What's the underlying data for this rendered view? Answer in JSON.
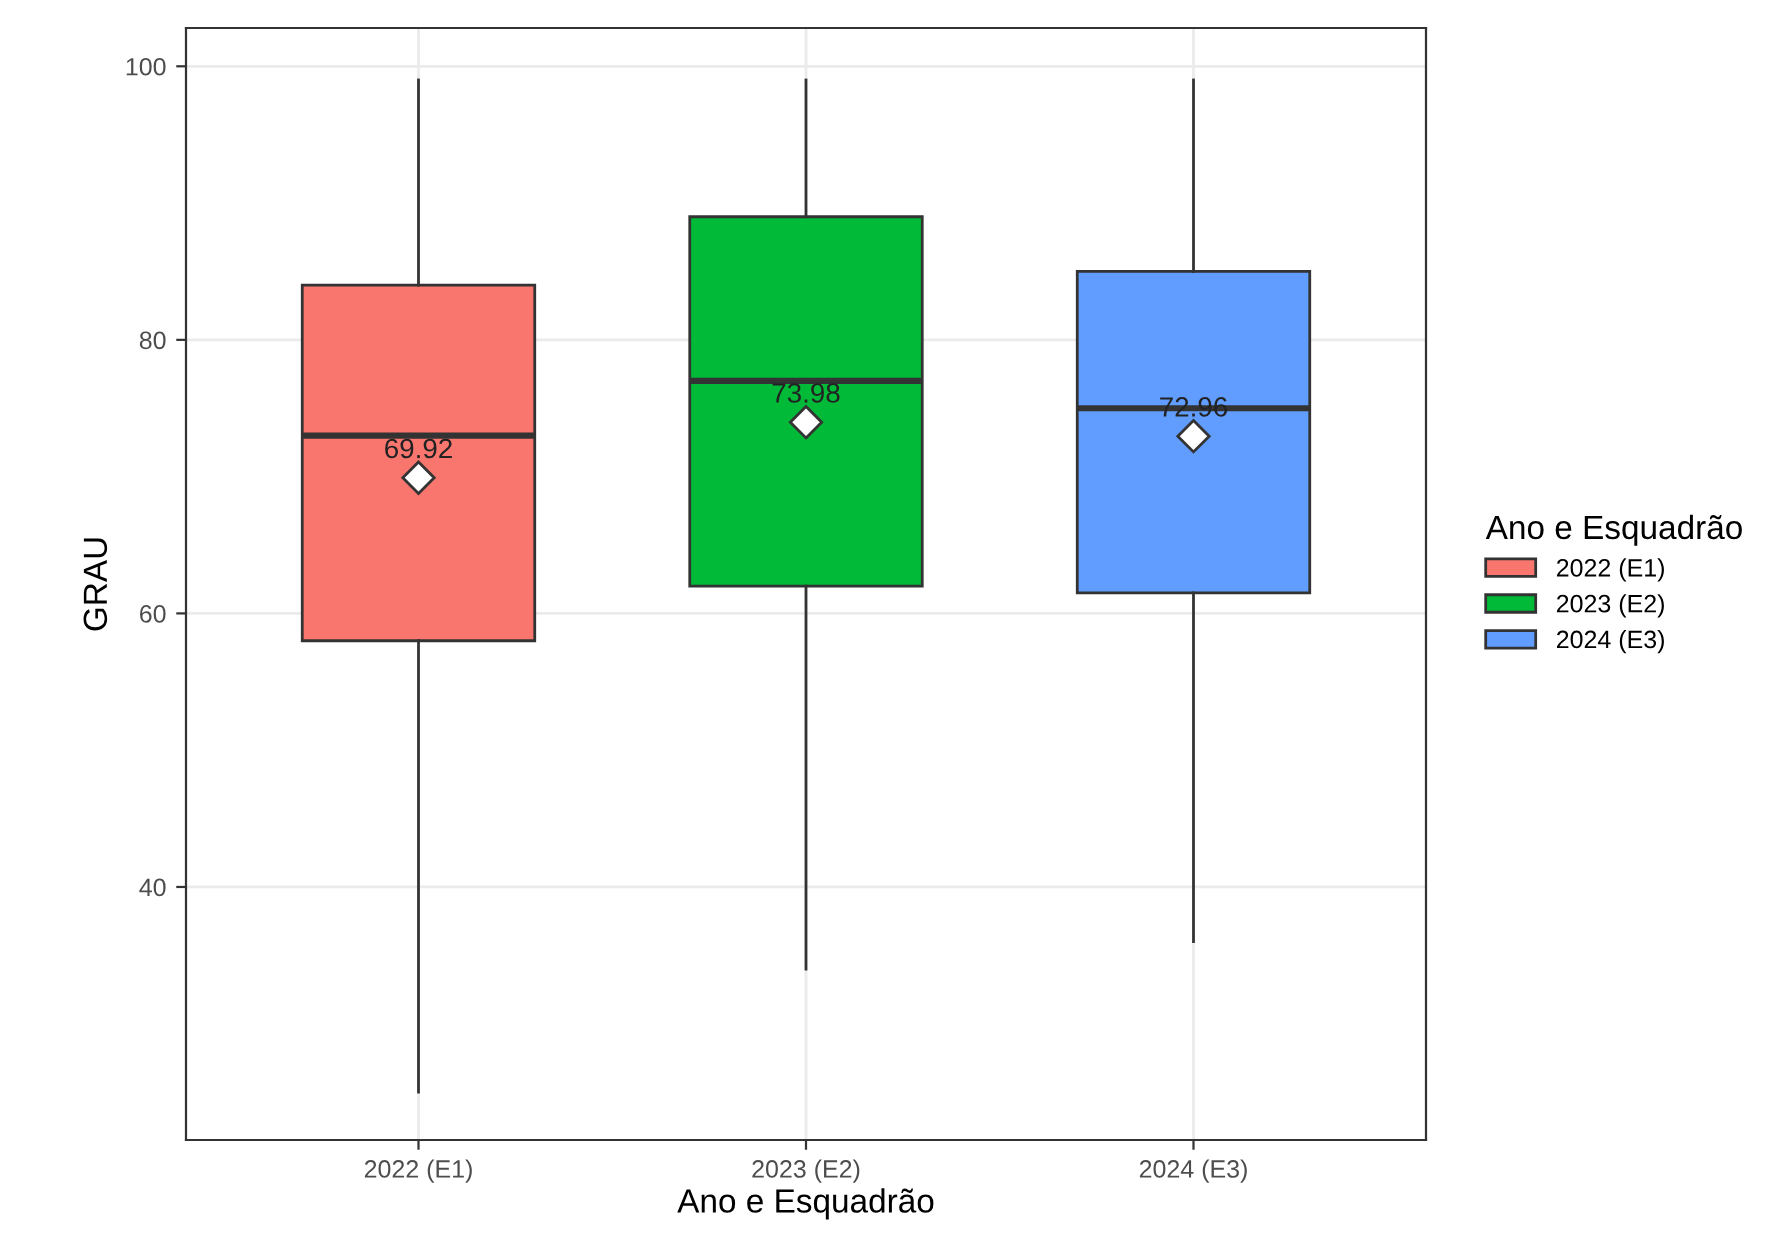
{
  "chart_data": {
    "type": "box",
    "xlabel": "Ano e Esquadrão",
    "ylabel": "GRAU",
    "legend_title": "Ano e Esquadrão",
    "categories": [
      "2022 (E1)",
      "2023 (E2)",
      "2024 (E3)"
    ],
    "series": [
      {
        "name": "2022 (E1)",
        "color": "#f8766d",
        "boxes": [
          {
            "low": 25,
            "q1": 58,
            "median": 73,
            "q3": 84,
            "high": 99,
            "mean": 69.92
          },
          null,
          null
        ]
      },
      {
        "name": "2023 (E2)",
        "color": "#00ba38",
        "boxes": [
          null,
          {
            "low": 34,
            "q1": 62,
            "median": 77,
            "q3": 89,
            "high": 99,
            "mean": 73.98
          },
          null
        ]
      },
      {
        "name": "2024 (E3)",
        "color": "#619cff",
        "boxes": [
          null,
          null,
          {
            "low": 36,
            "q1": 61.5,
            "median": 75,
            "q3": 85,
            "high": 99,
            "mean": 72.96
          }
        ]
      }
    ],
    "annotations": [
      "69.92",
      "73.98",
      "72.96"
    ],
    "ylim": [
      21.5,
      102.8
    ],
    "yticks": [
      40,
      60,
      80,
      100
    ],
    "grid": true,
    "legend": "right"
  }
}
